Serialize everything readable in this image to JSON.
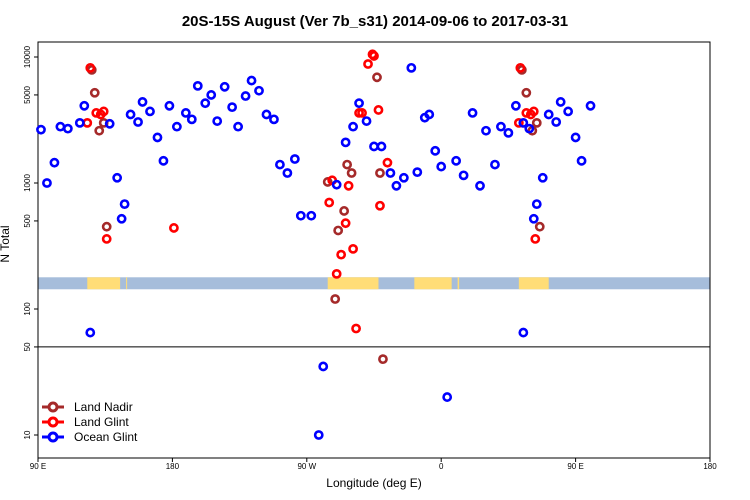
{
  "chart_data": {
    "type": "scatter",
    "title": "20S-15S August (Ver 7b_s31)   2014-09-06 to 2017-03-31",
    "xlabel": "Longitude (deg E)",
    "ylabel": "N Total",
    "x_scale": "linear",
    "y_scale": "log",
    "xlim": [
      90,
      540
    ],
    "ylim": [
      5,
      16000
    ],
    "x_ticks": [
      {
        "value": 90,
        "label": "90 E"
      },
      {
        "value": 180,
        "label": "180"
      },
      {
        "value": 270,
        "label": "90 W"
      },
      {
        "value": 360,
        "label": "0"
      },
      {
        "value": 450,
        "label": "90 E"
      },
      {
        "value": 540,
        "label": "180"
      }
    ],
    "y_ticks": [
      {
        "value": 10,
        "label": "10"
      },
      {
        "value": 50,
        "label": "50"
      },
      {
        "value": 100,
        "label": "100"
      },
      {
        "value": 500,
        "label": "500"
      },
      {
        "value": 1000,
        "label": "1000"
      },
      {
        "value": 5000,
        "label": "5000"
      },
      {
        "value": 10000,
        "label": "10000"
      }
    ],
    "horizontal_line": 50,
    "legend_position": "bottom-left",
    "colors": {
      "land_nadir": "#a52a2a",
      "land_glint": "#ff0000",
      "ocean_glint": "#0000ff",
      "land_strip": "#ffdd77",
      "ocean_strip": "#a6bddb"
    },
    "strip": {
      "y_value": 160,
      "land_segments": [
        [
          123,
          145
        ],
        [
          149,
          149.5
        ],
        [
          284,
          318
        ],
        [
          342,
          367
        ],
        [
          371,
          372
        ],
        [
          412,
          432
        ]
      ]
    },
    "series": [
      {
        "name": "Land Nadir",
        "key": "land_nadir",
        "points": [
          [
            126,
            7900
          ],
          [
            128,
            5200
          ],
          [
            131,
            2600
          ],
          [
            134,
            3000
          ],
          [
            136,
            450
          ],
          [
            284,
            1020
          ],
          [
            289,
            120
          ],
          [
            291,
            420
          ],
          [
            295,
            600
          ],
          [
            297,
            1400
          ],
          [
            300,
            1200
          ],
          [
            317,
            6900
          ],
          [
            319,
            1200
          ],
          [
            321,
            40
          ],
          [
            414,
            7900
          ],
          [
            417,
            5200
          ],
          [
            421,
            2600
          ],
          [
            424,
            3000
          ],
          [
            426,
            450
          ]
        ]
      },
      {
        "name": "Land Glint",
        "key": "land_glint",
        "points": [
          [
            123,
            3000
          ],
          [
            125,
            8200
          ],
          [
            129,
            3600
          ],
          [
            132,
            3500
          ],
          [
            134,
            3700
          ],
          [
            136,
            360
          ],
          [
            181,
            440
          ],
          [
            285,
            700
          ],
          [
            287,
            1050
          ],
          [
            290,
            190
          ],
          [
            293,
            270
          ],
          [
            296,
            480
          ],
          [
            298,
            950
          ],
          [
            301,
            300
          ],
          [
            303,
            70
          ],
          [
            305,
            3600
          ],
          [
            307,
            3600
          ],
          [
            311,
            8800
          ],
          [
            314,
            10500
          ],
          [
            315,
            10200
          ],
          [
            318,
            3800
          ],
          [
            319,
            660
          ],
          [
            324,
            1450
          ],
          [
            412,
            3000
          ],
          [
            413,
            8200
          ],
          [
            417,
            3600
          ],
          [
            420,
            3500
          ],
          [
            422,
            3700
          ],
          [
            423,
            360
          ]
        ]
      },
      {
        "name": "Ocean Glint",
        "key": "ocean_glint",
        "points": [
          [
            92,
            2650
          ],
          [
            96,
            1000
          ],
          [
            101,
            1450
          ],
          [
            105,
            2800
          ],
          [
            110,
            2700
          ],
          [
            118,
            3000
          ],
          [
            121,
            4100
          ],
          [
            125,
            65
          ],
          [
            138,
            2950
          ],
          [
            143,
            1100
          ],
          [
            146,
            520
          ],
          [
            148,
            680
          ],
          [
            152,
            3500
          ],
          [
            157,
            3050
          ],
          [
            160,
            4400
          ],
          [
            165,
            3700
          ],
          [
            170,
            2300
          ],
          [
            174,
            1500
          ],
          [
            178,
            4100
          ],
          [
            183,
            2800
          ],
          [
            189,
            3600
          ],
          [
            193,
            3200
          ],
          [
            197,
            5900
          ],
          [
            202,
            4300
          ],
          [
            206,
            5000
          ],
          [
            210,
            3100
          ],
          [
            215,
            5800
          ],
          [
            220,
            4000
          ],
          [
            224,
            2800
          ],
          [
            229,
            4900
          ],
          [
            233,
            6500
          ],
          [
            238,
            5400
          ],
          [
            243,
            3500
          ],
          [
            248,
            3200
          ],
          [
            252,
            1400
          ],
          [
            257,
            1200
          ],
          [
            262,
            1550
          ],
          [
            266,
            550
          ],
          [
            273,
            550
          ],
          [
            278,
            10
          ],
          [
            281,
            35
          ],
          [
            290,
            970
          ],
          [
            296,
            2100
          ],
          [
            301,
            2800
          ],
          [
            305,
            4300
          ],
          [
            310,
            3100
          ],
          [
            315,
            1950
          ],
          [
            320,
            1950
          ],
          [
            326,
            1200
          ],
          [
            330,
            950
          ],
          [
            335,
            1100
          ],
          [
            340,
            8200
          ],
          [
            344,
            1220
          ],
          [
            349,
            3300
          ],
          [
            352,
            3500
          ],
          [
            356,
            1800
          ],
          [
            360,
            1350
          ],
          [
            364,
            20
          ],
          [
            370,
            1500
          ],
          [
            375,
            1150
          ],
          [
            381,
            3600
          ],
          [
            386,
            950
          ],
          [
            390,
            2600
          ],
          [
            396,
            1400
          ],
          [
            400,
            2800
          ],
          [
            405,
            2500
          ],
          [
            410,
            4100
          ],
          [
            415,
            3000
          ],
          [
            415,
            65
          ],
          [
            419,
            2700
          ],
          [
            422,
            520
          ],
          [
            424,
            680
          ],
          [
            428,
            1100
          ],
          [
            432,
            3500
          ],
          [
            437,
            3050
          ],
          [
            440,
            4400
          ],
          [
            445,
            3700
          ],
          [
            450,
            2300
          ],
          [
            454,
            1500
          ],
          [
            460,
            4100
          ]
        ]
      }
    ]
  }
}
